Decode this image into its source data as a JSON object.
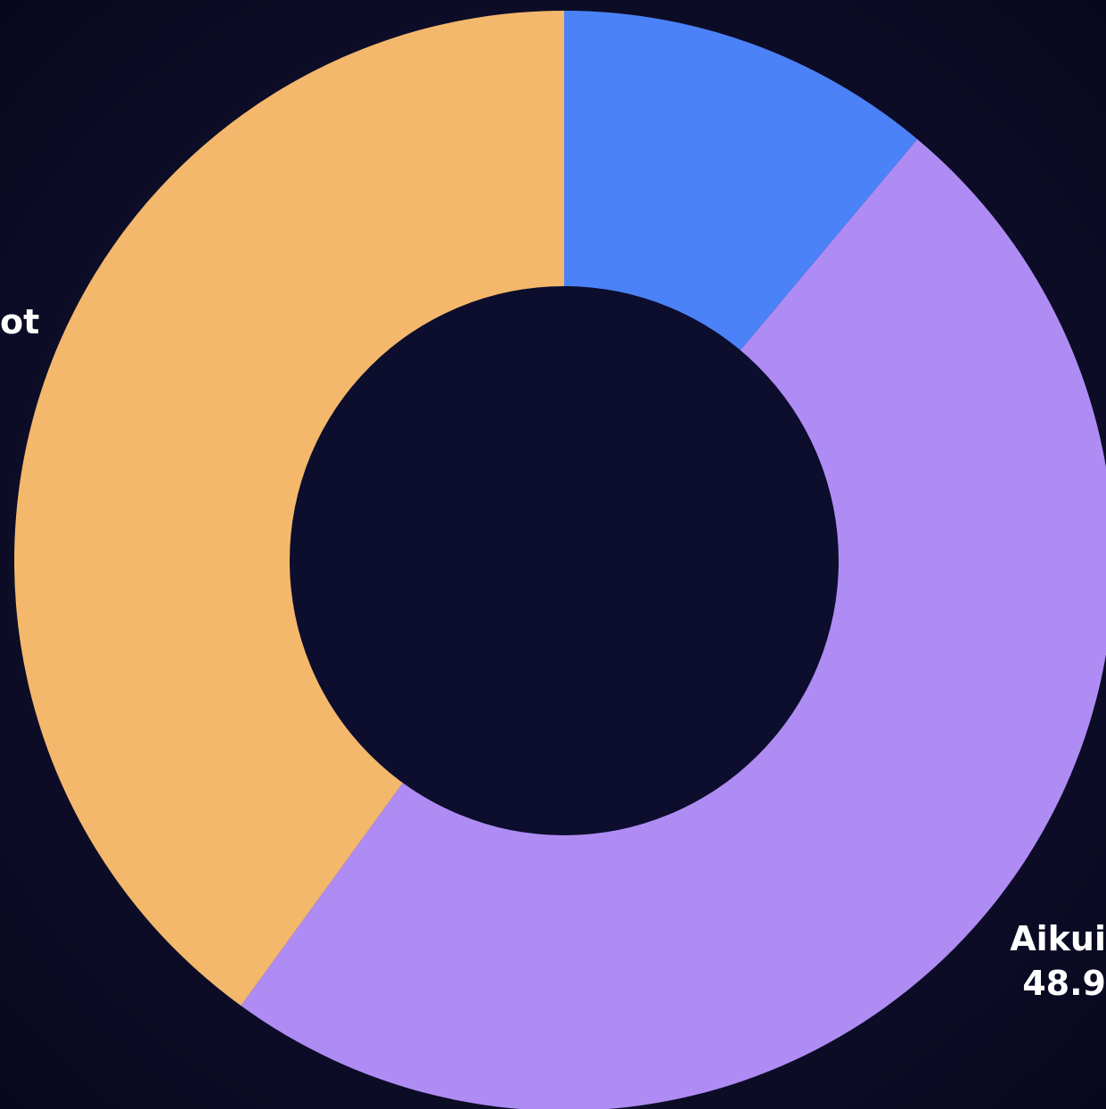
{
  "chart_data": {
    "type": "donut",
    "categories": [
      null,
      "Aikui",
      "ot"
    ],
    "values": [
      11.1,
      48.9,
      40
    ],
    "value_labels": [
      "11.1%",
      "48.9",
      null
    ],
    "colors": [
      "#4c82f7",
      "#af8cf3",
      "#f3b86b"
    ]
  }
}
